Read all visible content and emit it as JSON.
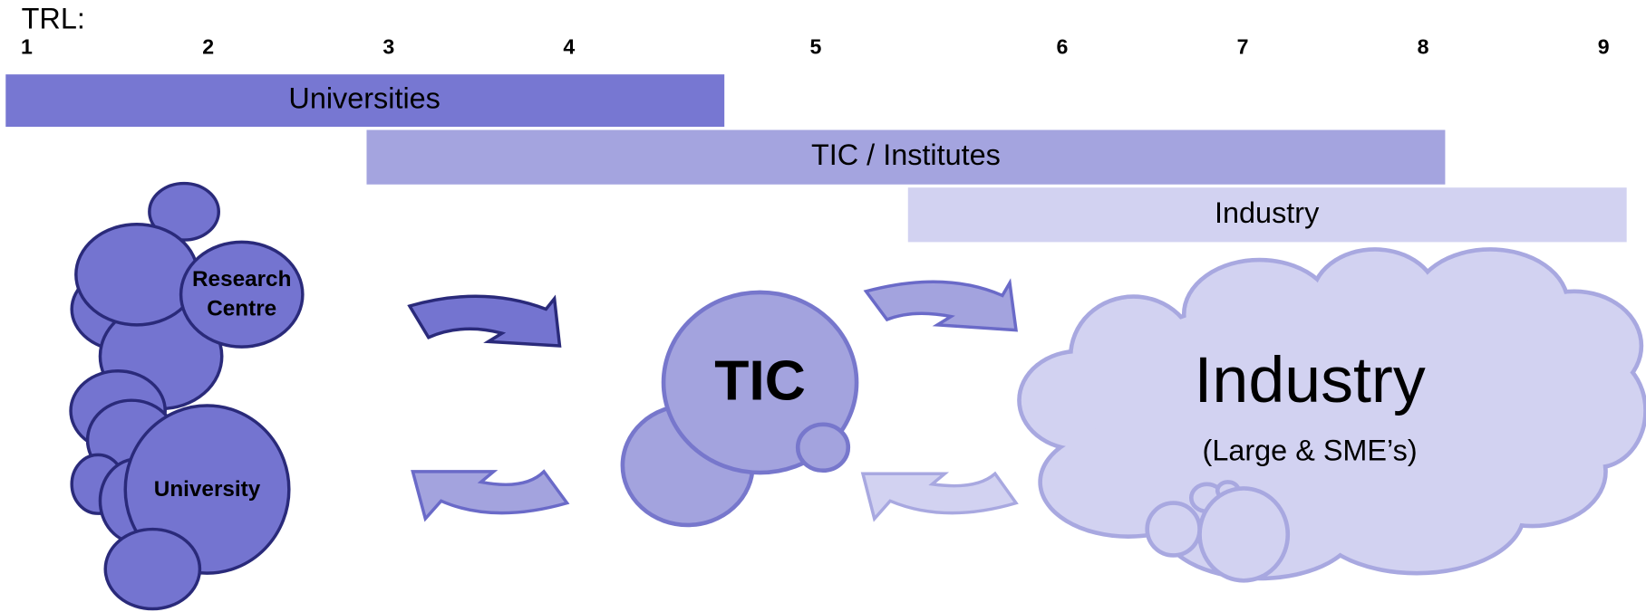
{
  "trl_label": "TRL:",
  "trl_levels": [
    "1",
    "2",
    "3",
    "4",
    "5",
    "6",
    "7",
    "8",
    "9"
  ],
  "bars": [
    {
      "label": "Universities"
    },
    {
      "label": "TIC / Institutes"
    },
    {
      "label": "Industry"
    }
  ],
  "nodes": [
    {
      "label": "Research\nCentre"
    },
    {
      "label": "University"
    },
    {
      "label": "TIC"
    },
    {
      "label": "Industry",
      "sublabel": "(Large & SME’s)"
    }
  ]
}
